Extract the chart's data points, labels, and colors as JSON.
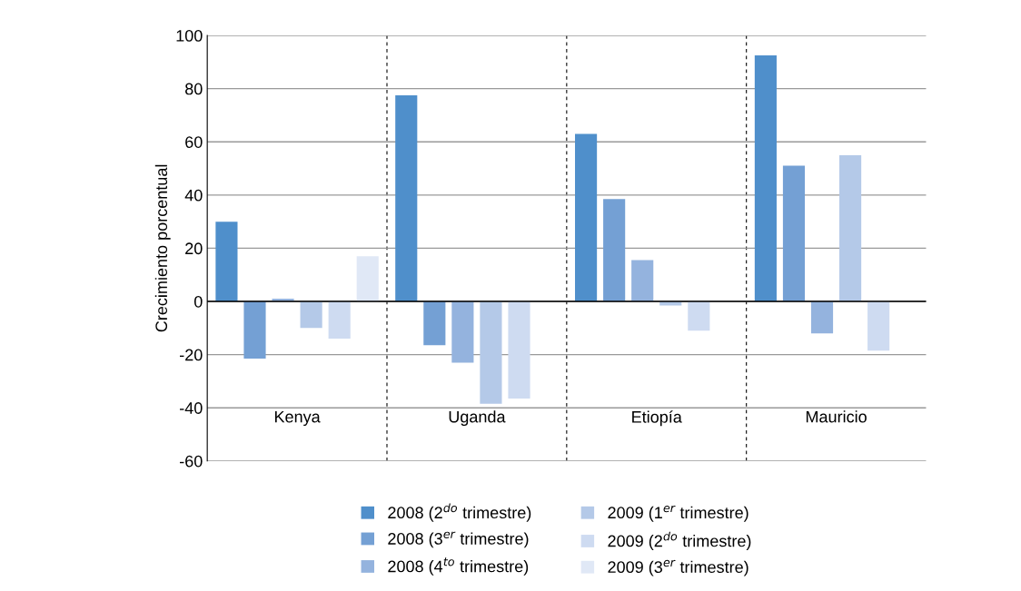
{
  "chart_data": {
    "type": "bar",
    "ylabel": "Crecimiento porcentual",
    "categories": [
      "Kenya",
      "Uganda",
      "Etiopía",
      "Mauricio"
    ],
    "series": [
      {
        "name": "2008 (2$^{do}$ trimestre)",
        "color": "#4f8fcb",
        "values": [
          30,
          77.5,
          63,
          92.5
        ]
      },
      {
        "name": "2008 (3$^{er}$ trimestre)",
        "color": "#74a0d4",
        "values": [
          -21.5,
          -16.5,
          38.5,
          51
        ]
      },
      {
        "name": "2008 (4$^{to}$ trimestre)",
        "color": "#94b3de",
        "values": [
          1,
          -23,
          15.5,
          -12
        ]
      },
      {
        "name": "2009 (1$^{er}$ trimestre)",
        "color": "#b4c9e8",
        "values": [
          -10,
          -38.5,
          -1.5,
          55
        ]
      },
      {
        "name": "2009 (2$^{do}$ trimestre)",
        "color": "#cedbf1",
        "values": [
          -14,
          -36.5,
          -11,
          -18.5
        ]
      },
      {
        "name": "2009 (3$^{er}$ trimestre)",
        "color": "#e0e8f6",
        "values": [
          17,
          null,
          null,
          null
        ]
      }
    ],
    "ylim": [
      -60,
      100
    ],
    "yticks": [
      -60,
      -40,
      -20,
      0,
      20,
      40,
      60,
      80,
      100
    ],
    "grid": "y",
    "legend": "bottom"
  }
}
